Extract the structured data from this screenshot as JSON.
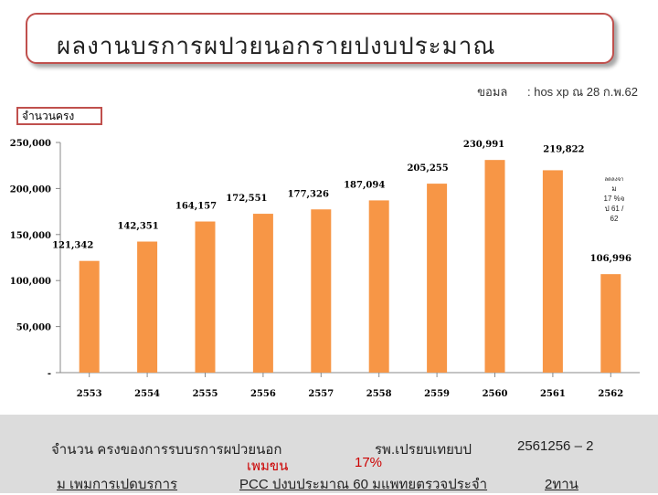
{
  "title": "ผลงานบรการผปวยนอกรายปงบประมาณ",
  "source": {
    "label": "ขอมล",
    "value": ": hos xp ณ 28 ก.พ.62"
  },
  "unit_label": "จำนวนครง",
  "chart_data": {
    "type": "bar",
    "categories": [
      "2553",
      "2554",
      "2555",
      "2556",
      "2557",
      "2558",
      "2559",
      "2560",
      "2561",
      "2562"
    ],
    "values": [
      121342,
      142351,
      164157,
      172551,
      177326,
      187094,
      205255,
      230991,
      219822,
      106996
    ],
    "value_labels": [
      "121,342",
      "142,351",
      "164,157",
      "172,551",
      "177,326",
      "187,094",
      "205,255",
      "230,991",
      "219,822",
      "106,996"
    ],
    "ylim": [
      0,
      250000
    ],
    "yticks": [
      0,
      50000,
      100000,
      150000,
      200000,
      250000
    ],
    "ytick_labels": [
      "-",
      "50,000",
      "100,000",
      "150,000",
      "200,000",
      "250,000"
    ],
    "bar_color": "#f79646",
    "grid": false,
    "annotation": {
      "lines": [
        "ลดลงจา",
        "ม",
        "17 %จ",
        "ป 61 /",
        "62"
      ]
    }
  },
  "footer": {
    "line1_left": "จำนวน  ครงของการรบบรการผปวยนอก",
    "line1_mid": "รพ.เปรยบเทยบป",
    "line1_right": "2561256 – 2",
    "line2_a": "เพมขน",
    "line2_b": "17%",
    "line3_a": "ม  เพมการเปดบรการ",
    "line3_b": "PCC ปงบประมาณ  60 มแพทยตรวจประจำ",
    "line3_c": "2ทาน"
  }
}
